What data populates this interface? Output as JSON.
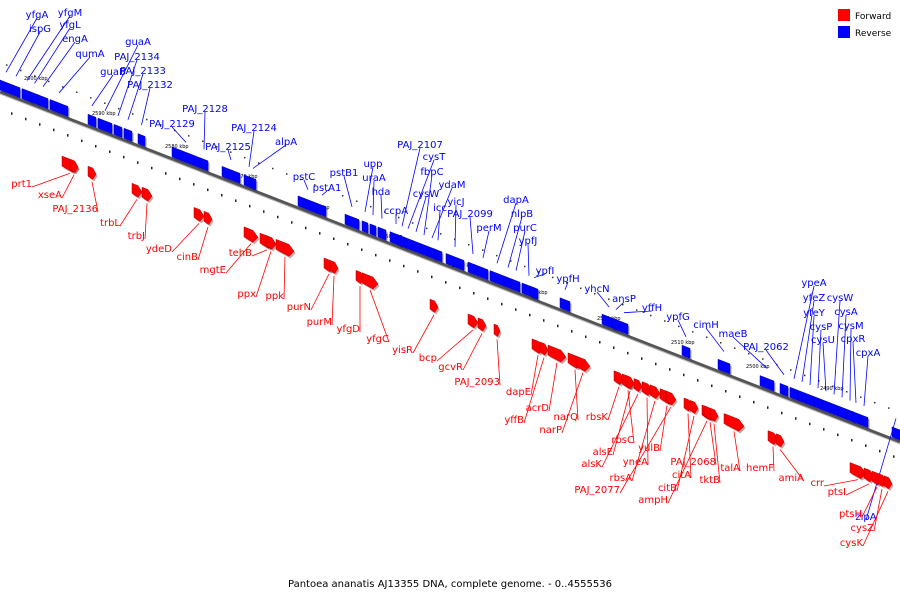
{
  "caption": "Pantoea ananatis AJ13355 DNA, complete genome. - 0..4555536",
  "legend": [
    {
      "label": "Forward",
      "color": "#ff0000"
    },
    {
      "label": "Reverse",
      "color": "#0000ff"
    }
  ],
  "colors": {
    "forward": "#ff0000",
    "reverse": "#0000ff",
    "backbone": "#888888"
  },
  "chart_data": {
    "type": "linear genome map",
    "tick_labels": [
      "2600 kbp",
      "2590 kbp",
      "2580 kbp",
      "2570 kbp",
      "2560 kbp",
      "2550 kbp",
      "2540 kbp",
      "2530 kbp",
      "2520 kbp",
      "2510 kbp",
      "2500 kbp",
      "2490 kbp"
    ],
    "reverse_genes": [
      "yfgA",
      "ispG",
      "yfgM",
      "yfgL",
      "engA",
      "qumA",
      "guaB",
      "guaA",
      "PAJ_2134",
      "PAJ_2133",
      "PAJ_2132",
      "PAJ_2129",
      "PAJ_2128",
      "PAJ_2125",
      "PAJ_2124",
      "alpA",
      "pstC",
      "pstA1",
      "pstB1",
      "upp",
      "uraA",
      "hda",
      "ccpA",
      "PAJ_2107",
      "cysT",
      "cysW",
      "fbpC",
      "ydaM",
      "icc",
      "yicJ",
      "PAJ_2099",
      "perM",
      "dapA",
      "nlpB",
      "purC",
      "ypfJ",
      "ypfI",
      "yhcN",
      "ypfH",
      "ansP",
      "yffH",
      "ypfG",
      "cimH",
      "maeB",
      "PAJ_2062",
      "ypeA",
      "yfeZ",
      "yfeY",
      "cysP",
      "cysU",
      "cysW",
      "cysA",
      "cysM",
      "cpxR",
      "cpxA",
      "zipA"
    ],
    "forward_genes": [
      "prt1",
      "xseA",
      "PAJ_2136",
      "trbL",
      "trbJ",
      "ydeD",
      "cinB",
      "mgtE",
      "tehB",
      "ppx",
      "ppk",
      "purN",
      "purM",
      "yfgD",
      "yfgC",
      "yisR",
      "bcp",
      "gcvR",
      "PAJ_2093",
      "dapE",
      "yffB",
      "acrD",
      "narQ",
      "narP",
      "rbsK",
      "rbsC",
      "alsE",
      "alsK",
      "yneA",
      "rbsA",
      "yulB",
      "PAJ_2077",
      "citA",
      "citB",
      "ampH",
      "PAJ_2068",
      "tktB",
      "talA",
      "hemF",
      "amiA",
      "crr",
      "ptsI",
      "ptsH",
      "cysZ",
      "cysK"
    ]
  }
}
